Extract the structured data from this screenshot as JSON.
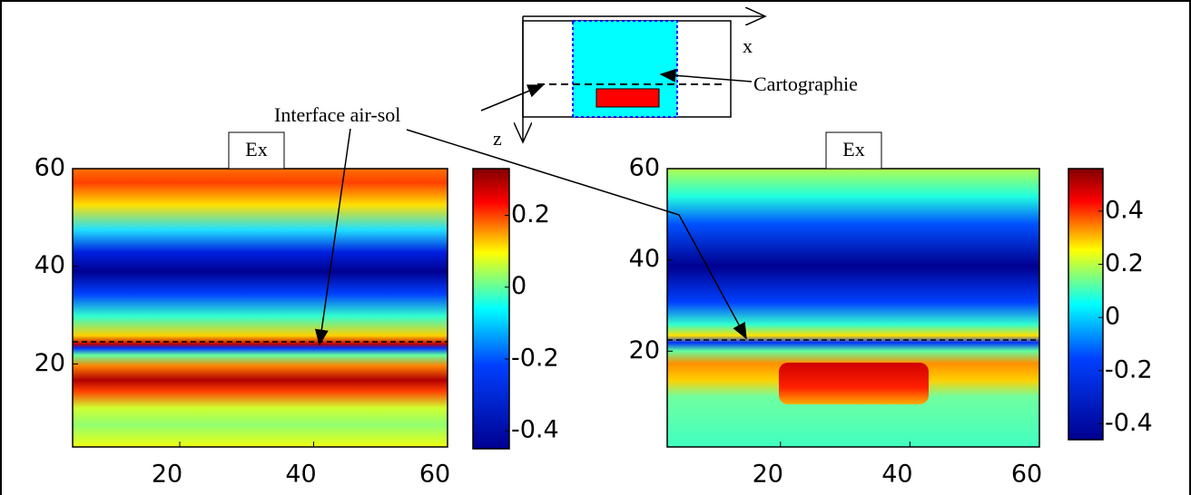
{
  "annotations": {
    "interface": "Interface air-sol",
    "mapping": "Cartographie",
    "x_axis": "x",
    "z_axis": "z"
  },
  "chart_data": [
    {
      "type": "heatmap",
      "title": "Ex",
      "xlim": [
        4,
        60
      ],
      "ylim": [
        3,
        60
      ],
      "xticks": [
        20,
        40,
        60
      ],
      "yticks": [
        20,
        40,
        60
      ],
      "clim": [
        -0.45,
        0.33
      ],
      "cticks": [
        -0.4,
        -0.2,
        0,
        0.2
      ]
    },
    {
      "type": "heatmap",
      "title": "Ex",
      "xlim": [
        2.5,
        60
      ],
      "ylim": [
        -1,
        60
      ],
      "xticks": [
        20,
        40,
        60
      ],
      "yticks": [
        20,
        40,
        60
      ],
      "clim": [
        -0.46,
        0.56
      ],
      "cticks": [
        -0.4,
        -0.2,
        0,
        0.2,
        0.4
      ]
    }
  ]
}
